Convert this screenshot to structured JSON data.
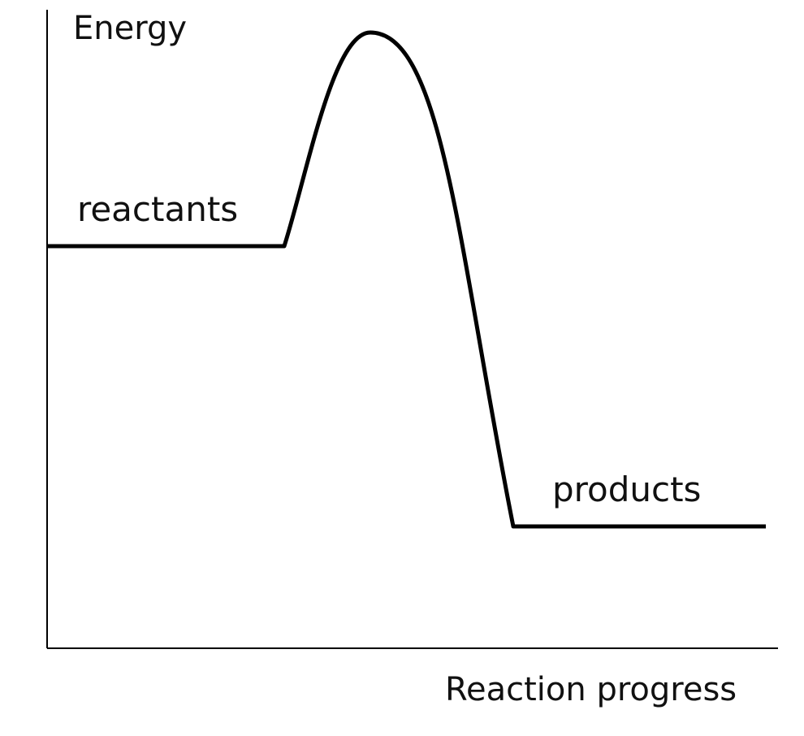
{
  "diagram": {
    "type": "energy profile",
    "axes": {
      "y_label": "Energy",
      "x_label": "Reaction progress"
    },
    "states": {
      "reactants_label": "reactants",
      "products_label": "products"
    },
    "colors": {
      "line": "#000000",
      "text": "#111111",
      "background": "#ffffff"
    }
  }
}
